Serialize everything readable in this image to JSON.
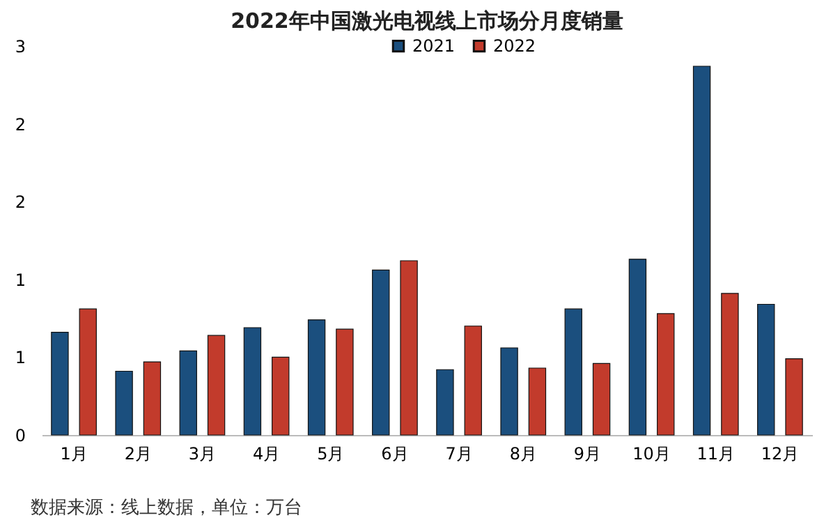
{
  "chart_data": {
    "type": "bar",
    "title": "2022年中国激光电视线上市场分月度销量",
    "categories": [
      "1月",
      "2月",
      "3月",
      "4月",
      "5月",
      "6月",
      "7月",
      "8月",
      "9月",
      "10月",
      "11月",
      "12月"
    ],
    "series": [
      {
        "name": "2021",
        "color": "#1b4f7e",
        "values": [
          0.66,
          0.41,
          0.54,
          0.69,
          0.74,
          1.06,
          0.42,
          0.56,
          0.81,
          1.13,
          2.37,
          0.84
        ]
      },
      {
        "name": "2022",
        "color": "#c23b2c",
        "values": [
          0.81,
          0.47,
          0.64,
          0.5,
          0.68,
          1.12,
          0.7,
          0.43,
          0.46,
          0.78,
          0.91,
          0.49
        ]
      }
    ],
    "ylim": [
      0,
      2.5
    ],
    "yticks": [
      0,
      {
        "value": 0.5,
        "label": "1"
      },
      1,
      {
        "value": 1.5,
        "label": "2"
      },
      2,
      {
        "value": 2.5,
        "label": "3"
      }
    ],
    "legend": "top",
    "grid": false,
    "annotations": [
      "数据来源：线上数据，单位：万台"
    ]
  }
}
